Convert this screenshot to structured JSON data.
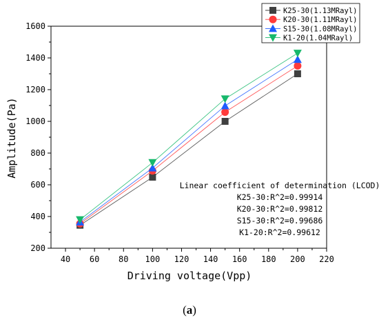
{
  "chart_data": {
    "type": "line",
    "title": "",
    "xlabel": "Driving voltage(Vpp)",
    "ylabel": "Amplitude(Pa)",
    "xlim": [
      30,
      220
    ],
    "ylim": [
      200,
      1600
    ],
    "x_ticks": [
      40,
      60,
      80,
      100,
      120,
      140,
      160,
      180,
      200,
      220
    ],
    "y_ticks": [
      200,
      400,
      600,
      800,
      1000,
      1200,
      1400,
      1600
    ],
    "x": [
      50,
      100,
      150,
      200
    ],
    "series": [
      {
        "name": "K25-30(1.13MRayl)",
        "color": "#404040",
        "marker": "square",
        "values": [
          345,
          648,
          1000,
          1300
        ]
      },
      {
        "name": "K20-30(1.11MRayl)",
        "color": "#ff3b3b",
        "marker": "circle",
        "values": [
          355,
          688,
          1058,
          1350
        ]
      },
      {
        "name": "S15-30(1.08MRayl)",
        "color": "#1e5bff",
        "marker": "triangle-up",
        "values": [
          365,
          706,
          1098,
          1390
        ]
      },
      {
        "name": "K1-20(1.04MRayl)",
        "color": "#16b86b",
        "marker": "triangle-down",
        "values": [
          380,
          740,
          1142,
          1430
        ]
      }
    ],
    "legend_position": "top-right",
    "grid": false,
    "annotations": [
      "Linear coefficient of determination (LCOD)",
      "K25-30:R^2=0.99914",
      "K20-30:R^2=0.99812",
      "S15-30:R^2=0.99686",
      "K1-20:R^2=0.99612"
    ]
  },
  "panel_label_open": "(",
  "panel_label_letter": "a",
  "panel_label_close": ")"
}
